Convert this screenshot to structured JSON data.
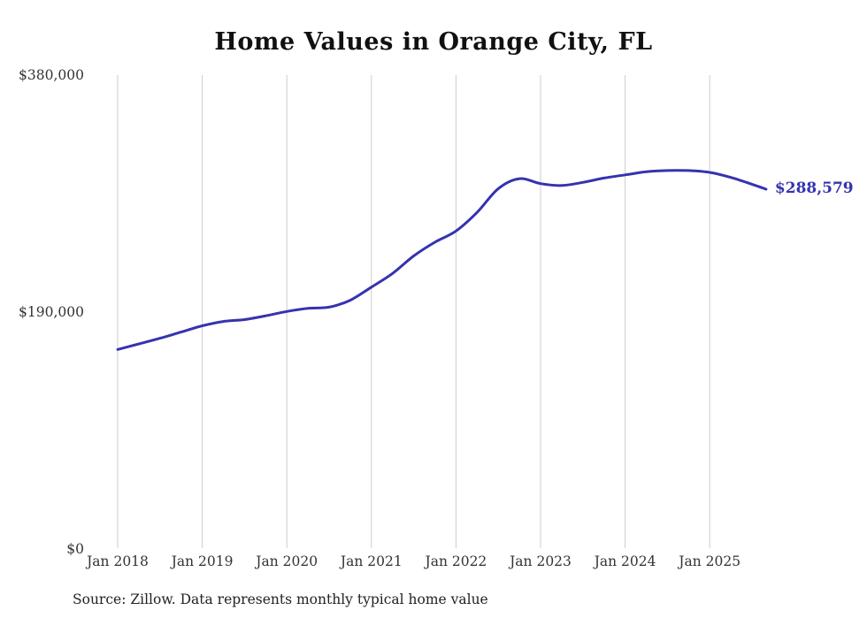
{
  "chart": {
    "title": "Home Values in Orange City, FL",
    "source": "Source: Zillow. Data represents monthly typical home value",
    "end_label": "$288,579",
    "line_color": "#3533af",
    "grid_color": "#cccccc",
    "text_color": "#333333"
  },
  "chart_data": {
    "type": "line",
    "title": "Home Values in Orange City, FL",
    "xlabel": "",
    "ylabel": "",
    "ylim": [
      0,
      380000
    ],
    "grid": "vertical-only",
    "legend": "none",
    "y_ticks": [
      {
        "label": "$0",
        "value": 0
      },
      {
        "label": "$190,000",
        "value": 190000
      },
      {
        "label": "$380,000",
        "value": 380000
      }
    ],
    "x_ticks": [
      {
        "label": "Jan 2018",
        "month_index": 0
      },
      {
        "label": "Jan 2019",
        "month_index": 12
      },
      {
        "label": "Jan 2020",
        "month_index": 24
      },
      {
        "label": "Jan 2021",
        "month_index": 36
      },
      {
        "label": "Jan 2022",
        "month_index": 48
      },
      {
        "label": "Jan 2023",
        "month_index": 60
      },
      {
        "label": "Jan 2024",
        "month_index": 72
      },
      {
        "label": "Jan 2025",
        "month_index": 84
      }
    ],
    "series": [
      {
        "name": "Typical home value",
        "points": [
          {
            "date": "2018-01",
            "value": 160000
          },
          {
            "date": "2018-04",
            "value": 164500
          },
          {
            "date": "2018-07",
            "value": 169000
          },
          {
            "date": "2018-10",
            "value": 174000
          },
          {
            "date": "2019-01",
            "value": 179000
          },
          {
            "date": "2019-04",
            "value": 182500
          },
          {
            "date": "2019-07",
            "value": 184000
          },
          {
            "date": "2019-10",
            "value": 187000
          },
          {
            "date": "2020-01",
            "value": 190500
          },
          {
            "date": "2020-04",
            "value": 193000
          },
          {
            "date": "2020-07",
            "value": 194000
          },
          {
            "date": "2020-10",
            "value": 199500
          },
          {
            "date": "2021-01",
            "value": 210000
          },
          {
            "date": "2021-04",
            "value": 221000
          },
          {
            "date": "2021-07",
            "value": 235000
          },
          {
            "date": "2021-10",
            "value": 246000
          },
          {
            "date": "2022-01",
            "value": 255000
          },
          {
            "date": "2022-04",
            "value": 270000
          },
          {
            "date": "2022-07",
            "value": 289000
          },
          {
            "date": "2022-10",
            "value": 297000
          },
          {
            "date": "2023-01",
            "value": 293000
          },
          {
            "date": "2023-04",
            "value": 291500
          },
          {
            "date": "2023-07",
            "value": 294000
          },
          {
            "date": "2023-10",
            "value": 297500
          },
          {
            "date": "2024-01",
            "value": 300000
          },
          {
            "date": "2024-04",
            "value": 302500
          },
          {
            "date": "2024-07",
            "value": 303500
          },
          {
            "date": "2024-10",
            "value": 303500
          },
          {
            "date": "2025-01",
            "value": 302000
          },
          {
            "date": "2025-04",
            "value": 298000
          },
          {
            "date": "2025-07",
            "value": 292500
          },
          {
            "date": "2025-09",
            "value": 288579
          }
        ]
      }
    ]
  }
}
